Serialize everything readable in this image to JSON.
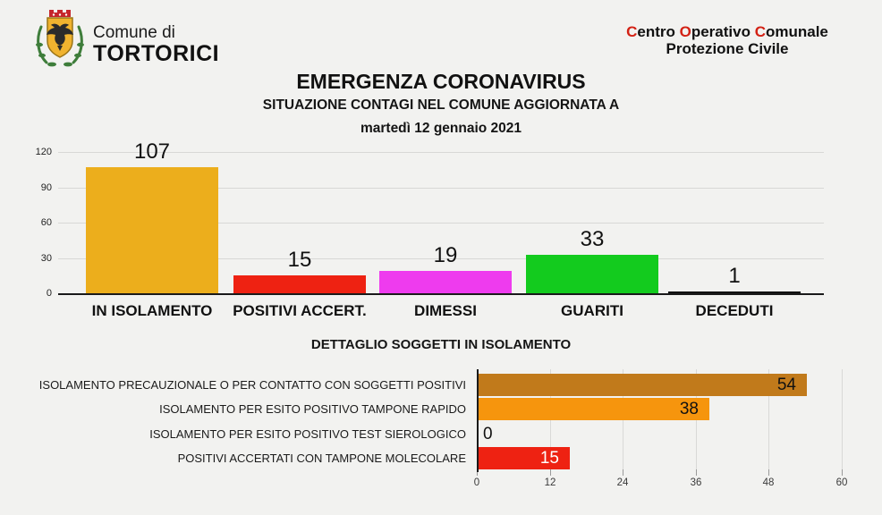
{
  "header": {
    "comune_small": "Comune di",
    "comune_big": "TORTORICI",
    "coc_words": [
      "Centro",
      "Operativo",
      "Comunale"
    ],
    "coc_line2": "Protezione Civile",
    "coc_accent_color": "#d32114",
    "logo_colors": {
      "shield": "#f0b32f",
      "shield_border": "#9a7417",
      "eagle": "#2b2b2b",
      "crown": "#c5262c",
      "laurel": "#3e7d3a"
    }
  },
  "titles": {
    "main": "EMERGENZA CORONAVIRUS",
    "subtitle": "SITUAZIONE CONTAGI NEL COMUNE AGGIORNATA A",
    "date": "martedì 12 gennaio 2021"
  },
  "chart_data": [
    {
      "type": "bar",
      "title": "EMERGENZA CORONAVIRUS",
      "categories": [
        "IN ISOLAMENTO",
        "POSITIVI ACCERT.",
        "DIMESSI",
        "GUARITI",
        "DECEDUTI"
      ],
      "values": [
        107,
        15,
        19,
        33,
        1
      ],
      "colors": [
        "#ecae1c",
        "#ee2212",
        "#ee3bee",
        "#13cb1e",
        "#111111"
      ],
      "xlabel": "",
      "ylabel": "",
      "ylim": [
        0,
        120
      ],
      "yticks": [
        0,
        30,
        60,
        90,
        120
      ],
      "grid": true,
      "legend": "none",
      "value_labels": "above bars"
    },
    {
      "type": "bar-horizontal",
      "title": "DETTAGLIO SOGGETTI IN ISOLAMENTO",
      "categories": [
        "ISOLAMENTO PRECAUZIONALE O PER CONTATTO CON SOGGETTI POSITIVI",
        "ISOLAMENTO PER ESITO POSITIVO TAMPONE RAPIDO",
        "ISOLAMENTO PER ESITO POSITIVO TEST SIEROLOGICO",
        "POSITIVI ACCERTATI CON TAMPONE MOLECOLARE"
      ],
      "values": [
        54,
        38,
        0,
        15
      ],
      "colors": [
        "#c17a1b",
        "#f6950d",
        "#f6950d",
        "#ee2212"
      ],
      "value_label_colors": [
        "#111111",
        "#111111",
        "#111111",
        "#ffffff"
      ],
      "xlabel": "",
      "ylabel": "",
      "xlim": [
        0,
        60
      ],
      "xticks": [
        0,
        12,
        24,
        36,
        48,
        60
      ],
      "grid": true,
      "legend": "none",
      "value_labels": "inside bar end"
    }
  ]
}
